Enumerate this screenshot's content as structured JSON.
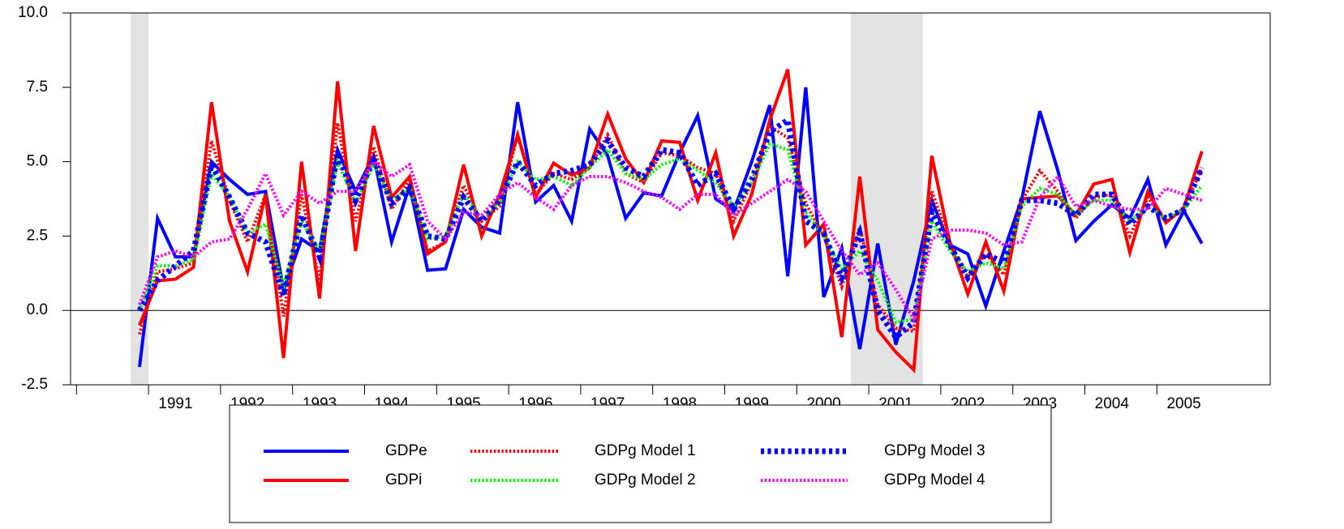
{
  "chart_data": {
    "type": "line",
    "categories": [
      null,
      null,
      "1991",
      null,
      null,
      null,
      "1992",
      null,
      null,
      null,
      "1993",
      null,
      null,
      null,
      "1994",
      null,
      null,
      null,
      "1995",
      null,
      null,
      null,
      "1996",
      null,
      null,
      null,
      "1997",
      null,
      null,
      null,
      "1998",
      null,
      null,
      null,
      "1999",
      null,
      null,
      null,
      "2000",
      null,
      null,
      null,
      "2001",
      null,
      null,
      null,
      "2002",
      null,
      null,
      null,
      "2003",
      null,
      null,
      null,
      "2004",
      null,
      null,
      null,
      "2005",
      null
    ],
    "ylim": [
      -2.5,
      10
    ],
    "yticks": [
      {
        "value": -2.5,
        "label": "-2.5"
      },
      {
        "value": 0,
        "label": "0.0"
      },
      {
        "value": 2.5,
        "label": "2.5"
      },
      {
        "value": 5,
        "label": "5.0"
      },
      {
        "value": 7.5,
        "label": "7.5"
      },
      {
        "value": 10,
        "label": "10.0"
      }
    ],
    "grid": false,
    "series": [
      {
        "name": "GDPe",
        "color": "#0000ff",
        "dotted": false,
        "line_width": 4,
        "values": [
          -1.9,
          3.1,
          1.8,
          1.8,
          5.0,
          4.4,
          3.9,
          4.0,
          0.7,
          2.4,
          2.0,
          5.4,
          4.0,
          5.2,
          2.3,
          4.2,
          1.35,
          1.4,
          3.4,
          2.8,
          2.6,
          7.0,
          3.65,
          4.2,
          3.0,
          6.1,
          5.2,
          3.1,
          3.95,
          3.85,
          5.3,
          6.55,
          3.75,
          3.35,
          5.0,
          6.9,
          1.15,
          7.5,
          0.45,
          2.1,
          -1.3,
          2.25,
          -1.15,
          1.0,
          3.7,
          2.2,
          1.9,
          0.15,
          2.0,
          3.75,
          6.7,
          4.7,
          2.35,
          3.0,
          3.55,
          3.1,
          4.4,
          2.2,
          3.35,
          2.25
        ]
      },
      {
        "name": "GDPi",
        "color": "#ff0000",
        "dotted": false,
        "line_width": 4,
        "values": [
          -0.5,
          1.0,
          1.05,
          1.45,
          7.0,
          3.0,
          1.3,
          3.9,
          -1.6,
          5.0,
          0.4,
          7.7,
          2.0,
          6.2,
          3.8,
          4.5,
          1.9,
          2.3,
          4.9,
          2.5,
          3.9,
          5.9,
          3.8,
          4.95,
          4.55,
          4.8,
          6.6,
          5.1,
          4.3,
          5.7,
          5.65,
          3.7,
          5.3,
          2.5,
          3.9,
          6.4,
          8.1,
          2.2,
          2.9,
          -0.9,
          4.5,
          -0.65,
          -1.4,
          -2.0,
          5.2,
          2.3,
          0.55,
          2.3,
          0.65,
          3.75,
          3.8,
          3.85,
          3.2,
          4.25,
          4.4,
          1.95,
          4.0,
          2.95,
          3.45,
          5.35
        ]
      },
      {
        "name": "GDPg Model 1",
        "color": "#ff0000",
        "dotted": true,
        "line_width": 4,
        "values": [
          -0.8,
          1.3,
          1.4,
          1.6,
          5.7,
          3.7,
          2.3,
          3.9,
          -0.2,
          3.9,
          1.0,
          6.3,
          3.0,
          5.5,
          3.4,
          4.4,
          2.0,
          2.3,
          4.2,
          3.0,
          3.5,
          5.9,
          3.9,
          4.6,
          4.4,
          4.8,
          5.9,
          4.6,
          4.3,
          5.3,
          5.2,
          4.8,
          4.6,
          3.0,
          4.3,
          6.2,
          5.8,
          3.6,
          2.5,
          0.8,
          2.8,
          0.2,
          -0.6,
          -0.7,
          4.0,
          2.3,
          1.1,
          1.9,
          1.2,
          3.7,
          4.7,
          4.0,
          3.1,
          3.8,
          3.9,
          2.5,
          3.8,
          3.0,
          3.4,
          4.8
        ]
      },
      {
        "name": "GDPg Model 2",
        "color": "#00ff00",
        "dotted": true,
        "line_width": 4,
        "values": [
          0.0,
          1.5,
          1.5,
          1.7,
          4.6,
          3.8,
          2.6,
          2.9,
          0.8,
          3.0,
          2.0,
          5.0,
          3.6,
          4.9,
          3.7,
          4.1,
          2.4,
          2.5,
          3.9,
          3.1,
          3.6,
          5.0,
          4.4,
          4.5,
          4.2,
          4.8,
          5.4,
          4.6,
          4.4,
          4.9,
          5.1,
          4.7,
          4.3,
          3.5,
          4.3,
          5.6,
          5.4,
          3.3,
          2.5,
          1.4,
          2.0,
          1.0,
          -0.4,
          -0.3,
          3.0,
          2.0,
          1.3,
          1.6,
          1.4,
          3.5,
          4.1,
          3.9,
          3.2,
          3.7,
          3.7,
          3.0,
          3.5,
          3.1,
          3.4,
          4.2
        ]
      },
      {
        "name": "GDPg Model 3",
        "color": "#0000ff",
        "dotted": true,
        "line_width": 7,
        "values": [
          0.0,
          1.0,
          1.5,
          2.0,
          4.9,
          3.8,
          2.6,
          2.3,
          0.5,
          3.2,
          1.8,
          5.3,
          3.7,
          5.1,
          3.6,
          4.1,
          2.5,
          2.4,
          3.8,
          3.0,
          3.7,
          5.0,
          4.2,
          4.6,
          4.7,
          4.9,
          5.7,
          4.8,
          4.5,
          5.4,
          5.3,
          4.2,
          4.6,
          3.4,
          4.4,
          6.0,
          6.4,
          3.0,
          2.6,
          1.1,
          2.6,
          0.0,
          -0.9,
          -0.4,
          3.3,
          2.2,
          1.1,
          1.9,
          1.6,
          3.7,
          3.7,
          3.6,
          3.2,
          3.9,
          3.9,
          2.9,
          3.5,
          3.1,
          3.4,
          4.8
        ]
      },
      {
        "name": "GDPg Model 4",
        "color": "#ff00ff",
        "dotted": true,
        "line_width": 4,
        "values": [
          0.2,
          1.8,
          2.0,
          1.8,
          2.3,
          2.4,
          3.4,
          4.6,
          3.2,
          4.0,
          3.6,
          4.0,
          4.0,
          5.0,
          4.5,
          4.9,
          3.0,
          2.4,
          3.3,
          3.2,
          3.9,
          4.3,
          3.8,
          3.4,
          4.2,
          4.5,
          4.5,
          4.3,
          4.0,
          3.8,
          3.4,
          3.9,
          3.9,
          3.2,
          3.6,
          4.0,
          4.4,
          4.0,
          3.0,
          2.0,
          1.2,
          1.6,
          0.7,
          -0.3,
          2.4,
          2.7,
          2.7,
          2.6,
          2.2,
          2.3,
          3.8,
          4.5,
          3.5,
          3.7,
          3.5,
          3.4,
          3.4,
          4.1,
          3.9,
          3.7
        ]
      }
    ]
  }
}
